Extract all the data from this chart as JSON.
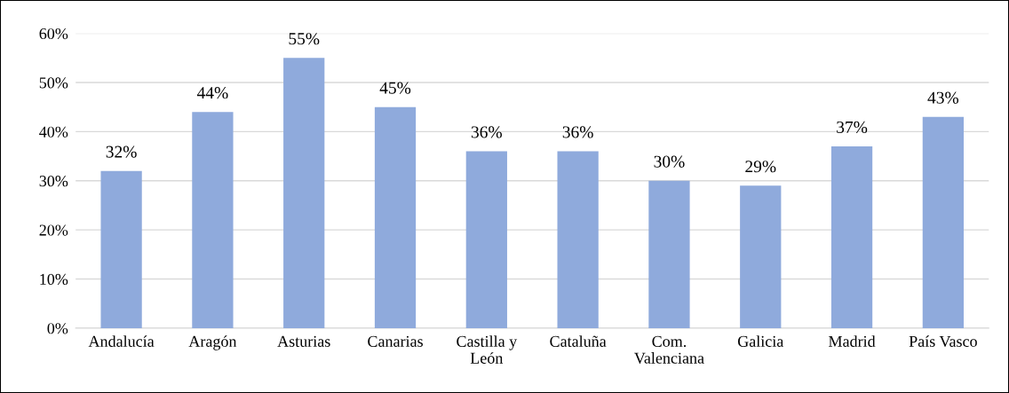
{
  "chart_data": {
    "type": "bar",
    "categories": [
      "Andalucía",
      "Aragón",
      "Asturias",
      "Canarias",
      "Castilla y\nLeón",
      "Cataluña",
      "Com.\nValenciana",
      "Galicia",
      "Madrid",
      "País Vasco"
    ],
    "values": [
      32,
      44,
      55,
      45,
      36,
      36,
      30,
      29,
      37,
      43
    ],
    "color": "#8faadc",
    "ylim": [
      0,
      60
    ],
    "yticks": [
      {
        "value": 0,
        "label": "0%"
      },
      {
        "value": 10,
        "label": "10%"
      },
      {
        "value": 20,
        "label": "20%"
      },
      {
        "value": 30,
        "label": "30%"
      },
      {
        "value": 40,
        "label": "40%"
      },
      {
        "value": 50,
        "label": "50%"
      },
      {
        "value": 60,
        "label": "60%"
      }
    ],
    "value_labels": [
      "32%",
      "44%",
      "55%",
      "45%",
      "36%",
      "36%",
      "30%",
      "29%",
      "37%",
      "43%"
    ],
    "grid": "y"
  }
}
